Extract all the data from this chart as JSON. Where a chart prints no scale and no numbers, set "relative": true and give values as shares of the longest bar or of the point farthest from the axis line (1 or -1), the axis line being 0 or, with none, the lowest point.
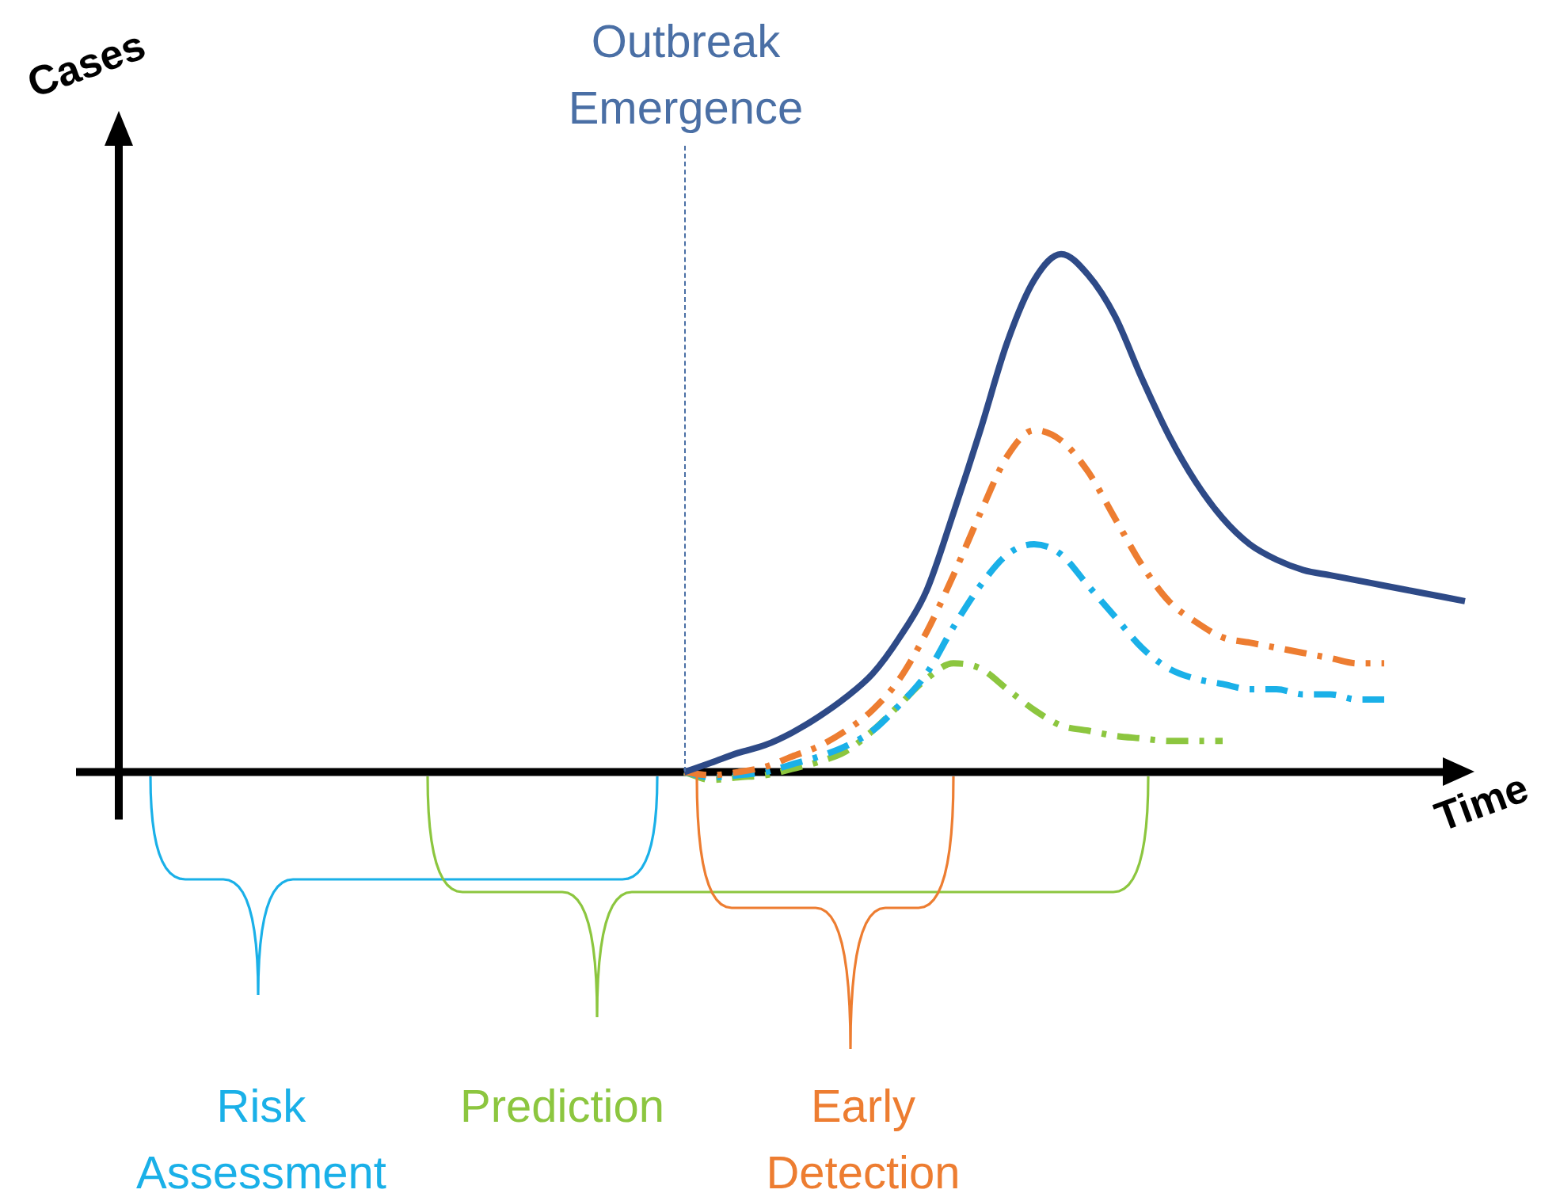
{
  "chart_data": {
    "type": "line",
    "relative": true,
    "xlabel": "Time",
    "ylabel": "Cases",
    "legend": false,
    "marker": "none",
    "categories": [
      null,
      null,
      null,
      null,
      null,
      null,
      null,
      null,
      null,
      null,
      null,
      null,
      null,
      null,
      null,
      null,
      null,
      null,
      null,
      null,
      null,
      null,
      null,
      null,
      null,
      null,
      null,
      null,
      null,
      null,
      null,
      null,
      null,
      null,
      null,
      null,
      null,
      null,
      null,
      null,
      null,
      null,
      null,
      null,
      null,
      null,
      null,
      null,
      null,
      null,
      null
    ],
    "series": [
      {
        "color": "#2e4a87",
        "line_style": "solid",
        "values": [
          null,
          null,
          null,
          null,
          null,
          null,
          null,
          null,
          null,
          null,
          null,
          null,
          null,
          null,
          null,
          null,
          null,
          null,
          null,
          null,
          null,
          0,
          0.018,
          0.037,
          0.052,
          0.076,
          0.107,
          0.144,
          0.19,
          0.26,
          0.35,
          0.5,
          0.66,
          0.83,
          0.95,
          1,
          0.96,
          0.88,
          0.76,
          0.65,
          0.56,
          0.49,
          0.44,
          0.41,
          0.39,
          0.38,
          0.37,
          0.36,
          0.35,
          0.34,
          0.33
        ]
      },
      {
        "color": "#ed7d31",
        "line_style": "dashed",
        "values": [
          null,
          null,
          null,
          null,
          null,
          null,
          null,
          null,
          null,
          null,
          null,
          null,
          null,
          null,
          null,
          null,
          null,
          null,
          null,
          null,
          null,
          0,
          -0.006,
          0,
          0.01,
          0.03,
          0.05,
          0.08,
          0.12,
          0.18,
          0.27,
          0.38,
          0.5,
          0.61,
          0.66,
          0.64,
          0.58,
          0.49,
          0.4,
          0.33,
          0.29,
          0.26,
          0.25,
          0.24,
          0.23,
          0.22,
          0.21,
          0.21,
          null,
          null,
          null
        ]
      },
      {
        "color": "#1ab0e8",
        "line_style": "dashed",
        "values": [
          null,
          null,
          null,
          null,
          null,
          null,
          null,
          null,
          null,
          null,
          null,
          null,
          null,
          null,
          null,
          null,
          null,
          null,
          null,
          null,
          null,
          0,
          -0.01,
          -0.006,
          0,
          0.015,
          0.03,
          0.05,
          0.08,
          0.13,
          0.19,
          0.28,
          0.36,
          0.42,
          0.44,
          0.42,
          0.36,
          0.3,
          0.24,
          0.2,
          0.18,
          0.17,
          0.16,
          0.16,
          0.15,
          0.15,
          0.14,
          0.14,
          null,
          null,
          null
        ]
      },
      {
        "color": "#8cc63f",
        "line_style": "dashed",
        "values": [
          null,
          null,
          null,
          null,
          null,
          null,
          null,
          null,
          null,
          null,
          null,
          null,
          null,
          null,
          null,
          null,
          null,
          null,
          null,
          null,
          null,
          0,
          -0.015,
          -0.01,
          -0.006,
          0.006,
          0.02,
          0.04,
          0.08,
          0.13,
          0.18,
          0.21,
          0.2,
          0.16,
          0.12,
          0.09,
          0.08,
          0.07,
          0.065,
          0.06,
          0.06,
          0.06,
          null,
          null,
          null,
          null,
          null,
          null,
          null,
          null,
          null
        ]
      }
    ],
    "annotations": [
      "Outbreak Emergence",
      "Risk Assessment",
      "Prediction",
      "Early Detection"
    ]
  }
}
